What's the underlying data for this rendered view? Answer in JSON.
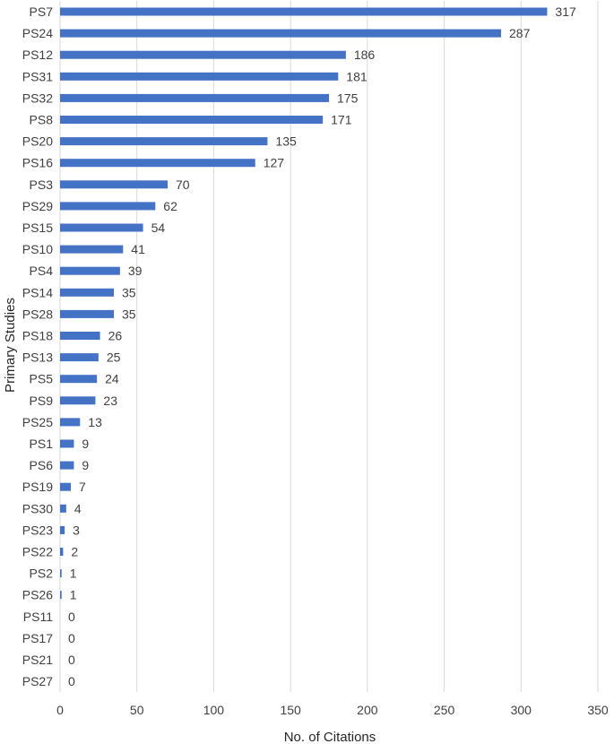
{
  "chart_data": {
    "type": "bar",
    "orientation": "horizontal",
    "categories": [
      "PS7",
      "PS24",
      "PS12",
      "PS31",
      "PS32",
      "PS8",
      "PS20",
      "PS16",
      "PS3",
      "PS29",
      "PS15",
      "PS10",
      "PS4",
      "PS14",
      "PS28",
      "PS18",
      "PS13",
      "PS5",
      "PS9",
      "PS25",
      "PS1",
      "PS6",
      "PS19",
      "PS30",
      "PS23",
      "PS22",
      "PS2",
      "PS26",
      "PS11",
      "PS17",
      "PS21",
      "PS27"
    ],
    "values": [
      317,
      287,
      186,
      181,
      175,
      171,
      135,
      127,
      70,
      62,
      54,
      41,
      39,
      35,
      35,
      26,
      25,
      24,
      23,
      13,
      9,
      9,
      7,
      4,
      3,
      2,
      1,
      1,
      0,
      0,
      0,
      0
    ],
    "title": "",
    "xlabel": "No. of Citations",
    "ylabel": "Primary Studies",
    "xlim": [
      0,
      350
    ],
    "xticks": [
      0,
      50,
      100,
      150,
      200,
      250,
      300,
      350
    ],
    "grid": "vertical",
    "data_labels": true,
    "bar_color": "#4472C4"
  }
}
